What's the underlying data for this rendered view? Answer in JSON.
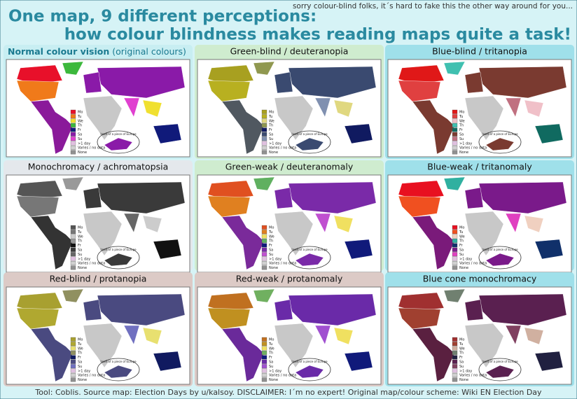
{
  "header_note": "sorry colour-blind folks, it´s hard to fake this the other way around for you...",
  "title": [
    "One map, 9 different perceptions:",
    "how colour blindness makes reading maps quite a task!"
  ],
  "panels": [
    {
      "title": "Normal colour vision",
      "subtitle": "(original colours)"
    },
    {
      "title": "Green-blind / deuteranopia"
    },
    {
      "title": "Blue-blind / tritanopia"
    },
    {
      "title": "Monochromacy / achromatopsia"
    },
    {
      "title": "Green-weak / deuteranomaly"
    },
    {
      "title": "Blue-weak / tritanomaly"
    },
    {
      "title": "Red-blind / protanopia"
    },
    {
      "title": "Red-weak / protanomaly"
    },
    {
      "title": "Blue cone monochromacy"
    }
  ],
  "legend": [
    "Mo",
    "Tu",
    "We",
    "Th",
    "Fr",
    "Sa",
    "Su",
    ">1 day",
    "Varies / no data",
    "None"
  ],
  "inset_label": "Inset of a piece of Europe",
  "footer": "Tool: Coblis. Source map: Election Days by u/kalsoy. DISCLAIMER: I´m no expert! Original map/colour scheme: Wiki EN Election Day"
}
